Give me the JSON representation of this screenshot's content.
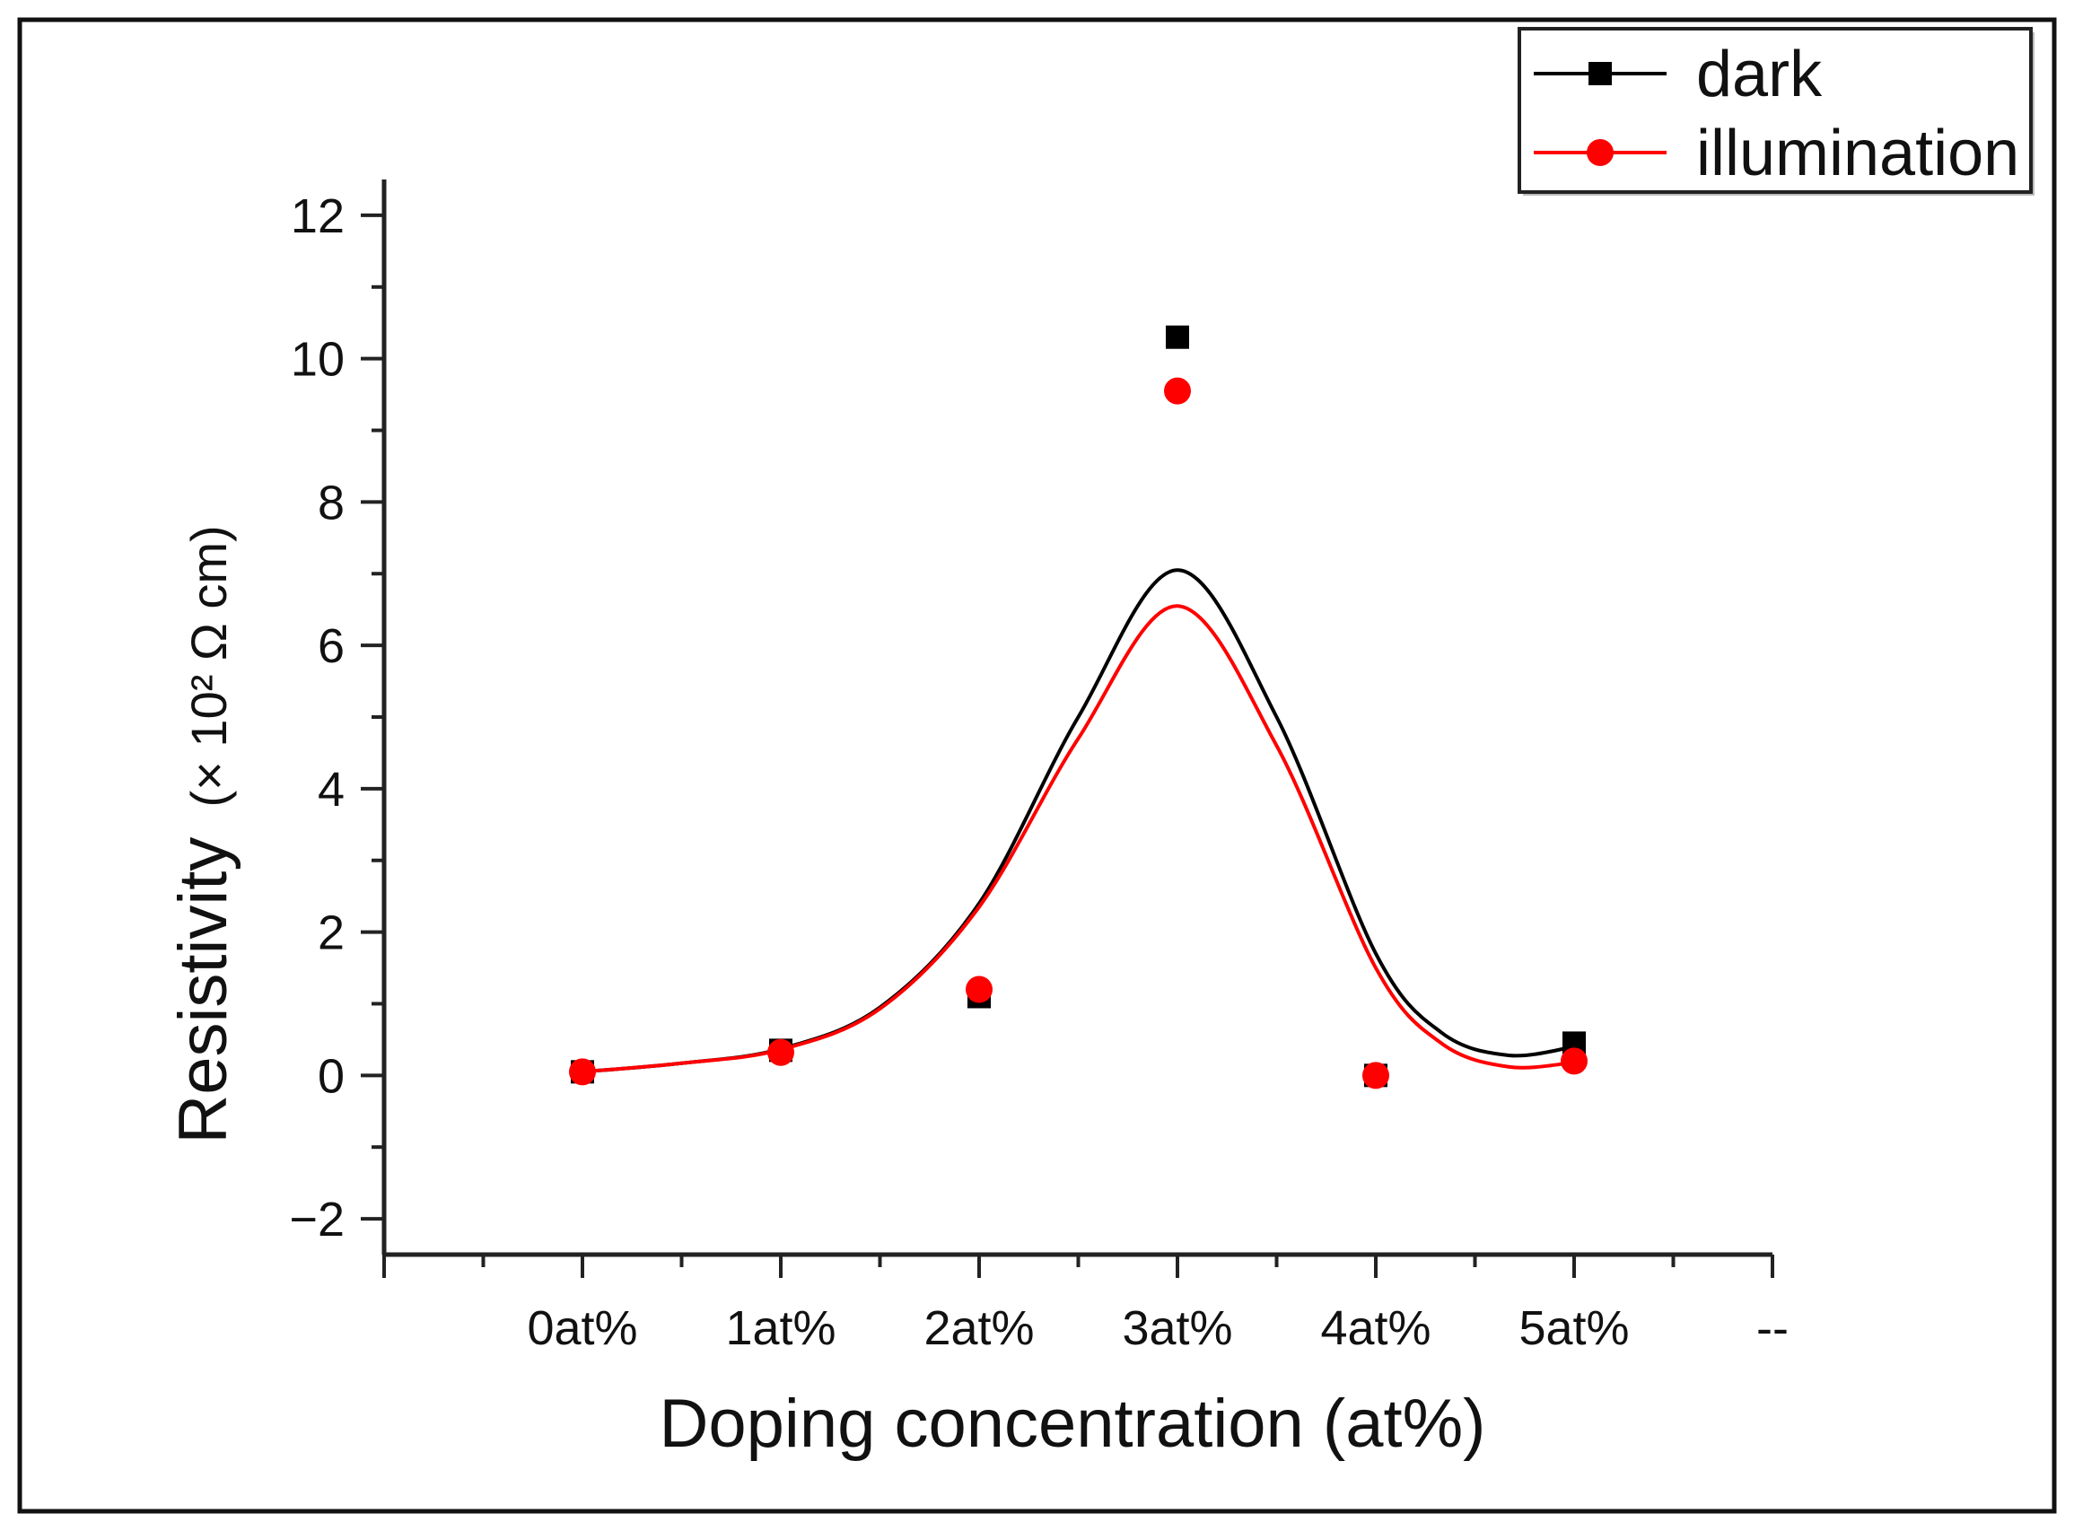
{
  "chart_data": {
    "type": "scatter",
    "title": "",
    "xlabel": "Doping concentration (at%)",
    "ylabel": "Resistivity",
    "ylabel_unit": "(× 10² Ω cm)",
    "categories": [
      "0at%",
      "1at%",
      "2at%",
      "3at%",
      "4at%",
      "5at%",
      "--"
    ],
    "x_range": [
      -1,
      6
    ],
    "ylim": [
      -2.5,
      12.5
    ],
    "yticks": [
      -2,
      0,
      2,
      4,
      6,
      8,
      10,
      12
    ],
    "ytick_labels": [
      "−2",
      "0",
      "2",
      "4",
      "6",
      "8",
      "10",
      "12"
    ],
    "grid": false,
    "legend_position": "top-right",
    "series": [
      {
        "name": "dark",
        "color": "#000000",
        "marker": "square",
        "values": [
          0.05,
          0.35,
          1.1,
          10.3,
          0.0,
          0.45
        ],
        "fit_curve": [
          [
            0,
            0.05
          ],
          [
            0.5,
            0.17
          ],
          [
            1,
            0.37
          ],
          [
            1.5,
            0.95
          ],
          [
            2,
            2.4
          ],
          [
            2.5,
            5.0
          ],
          [
            3,
            7.05
          ],
          [
            3.5,
            5.0
          ],
          [
            4,
            1.7
          ],
          [
            4.33,
            0.6
          ],
          [
            4.67,
            0.28
          ],
          [
            5,
            0.4
          ]
        ]
      },
      {
        "name": "illumination",
        "color": "#ff0000",
        "marker": "circle",
        "values": [
          0.05,
          0.32,
          1.2,
          9.55,
          0.0,
          0.2
        ],
        "fit_curve": [
          [
            0,
            0.05
          ],
          [
            0.5,
            0.17
          ],
          [
            1,
            0.36
          ],
          [
            1.5,
            0.93
          ],
          [
            2,
            2.35
          ],
          [
            2.5,
            4.7
          ],
          [
            3,
            6.55
          ],
          [
            3.5,
            4.6
          ],
          [
            4,
            1.5
          ],
          [
            4.33,
            0.45
          ],
          [
            4.67,
            0.12
          ],
          [
            5,
            0.18
          ]
        ]
      }
    ]
  }
}
